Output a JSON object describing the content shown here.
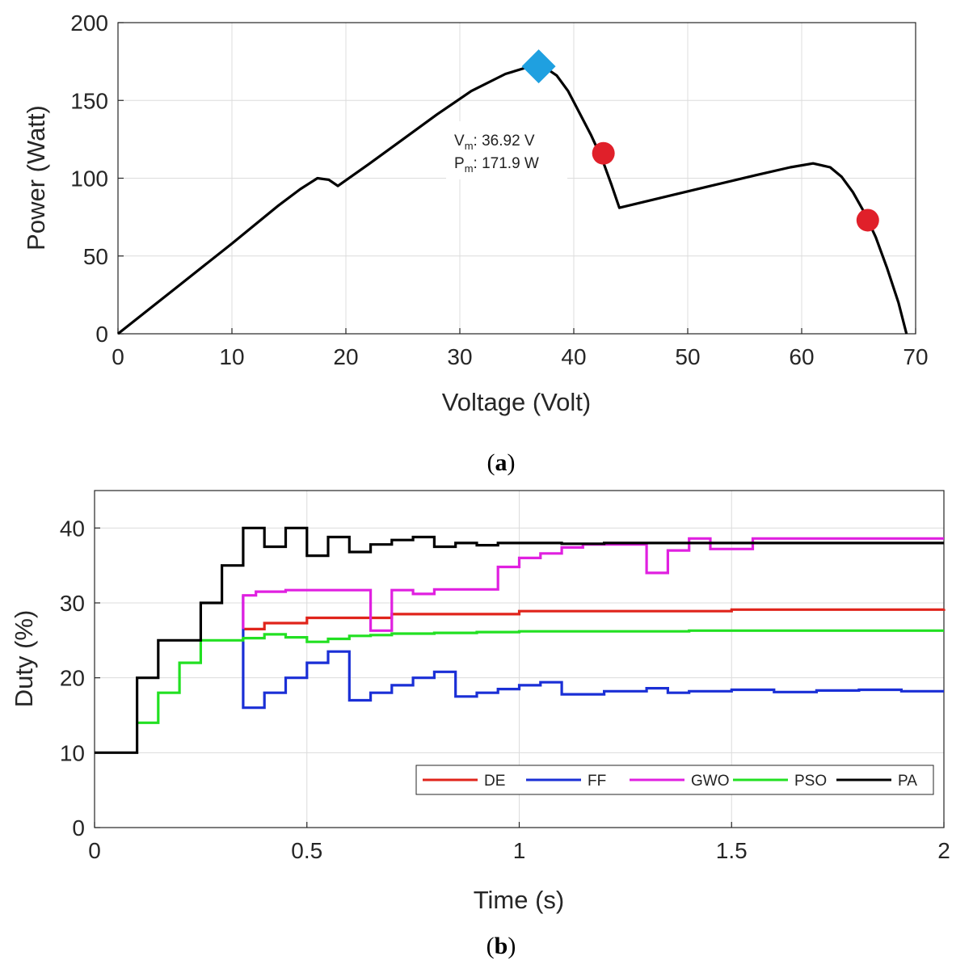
{
  "chart_data": [
    {
      "type": "line",
      "panel_label": "a",
      "xlabel": "Voltage (Volt)",
      "ylabel": "Power (Watt)",
      "xlim": [
        0,
        70
      ],
      "ylim": [
        0,
        200
      ],
      "xticks": [
        0,
        10,
        20,
        30,
        40,
        50,
        60,
        70
      ],
      "yticks": [
        0,
        50,
        100,
        150,
        200
      ],
      "grid": true,
      "series": [
        {
          "name": "P-V curve",
          "color": "#000000",
          "x": [
            0,
            5,
            10,
            14,
            16,
            17.5,
            18.5,
            19.3,
            22,
            25,
            28,
            31,
            34,
            36,
            37.5,
            38.5,
            39.5,
            40.5,
            41.5,
            42.5,
            43.3,
            44.0,
            48,
            52,
            56,
            59,
            61,
            62.5,
            63.5,
            64.5,
            65.5,
            66.5,
            67.5,
            68.5,
            69.2
          ],
          "y": [
            0,
            29,
            58,
            82,
            93,
            100,
            99,
            95,
            109,
            125,
            141,
            156,
            167,
            171.5,
            171,
            166,
            156,
            142,
            128,
            112,
            96,
            81,
            88,
            95,
            102,
            107,
            109.5,
            107,
            101,
            91,
            78,
            62,
            42,
            20,
            0
          ]
        }
      ],
      "markers": [
        {
          "kind": "diamond",
          "color": "#1fa0e0",
          "x": 36.92,
          "y": 171.9
        },
        {
          "kind": "circle",
          "color": "#e0202a",
          "x": 42.6,
          "y": 116
        },
        {
          "kind": "circle",
          "color": "#e0202a",
          "x": 65.8,
          "y": 73
        }
      ],
      "annotation": {
        "x": 37.5,
        "y": 111,
        "line1_main": "V",
        "line1_sub": "m",
        "line1_rest": ": 36.92 V",
        "line2_main": "P",
        "line2_sub": "m",
        "line2_rest": ": 171.9 W"
      }
    },
    {
      "type": "line",
      "panel_label": "b",
      "xlabel": "Time (s)",
      "ylabel": "Duty (%)",
      "xlim": [
        0,
        2
      ],
      "ylim": [
        0,
        45
      ],
      "xticks": [
        0,
        0.5,
        1,
        1.5,
        2
      ],
      "yticks": [
        0,
        10,
        20,
        30,
        40
      ],
      "grid": true,
      "legend_position": "bottom-right",
      "series": [
        {
          "name": "DE",
          "color": "#e0241b",
          "x": [
            0.35,
            0.4,
            0.5,
            0.7,
            1.0,
            1.5,
            2.0
          ],
          "y": [
            26.5,
            27.3,
            28.0,
            28.5,
            28.9,
            29.1,
            29.2
          ]
        },
        {
          "name": "FF",
          "color": "#1a2fd6",
          "x": [
            0.35,
            0.35,
            0.4,
            0.45,
            0.5,
            0.55,
            0.6,
            0.65,
            0.7,
            0.75,
            0.8,
            0.85,
            0.9,
            0.95,
            1.0,
            1.05,
            1.1,
            1.2,
            1.3,
            1.35,
            1.4,
            1.5,
            1.6,
            1.7,
            1.8,
            1.9,
            2.0
          ],
          "y": [
            31.0,
            16.0,
            18.0,
            20.0,
            22.0,
            23.5,
            17.0,
            18.0,
            19.0,
            20.0,
            20.8,
            17.5,
            18.0,
            18.5,
            19.0,
            19.4,
            17.8,
            18.2,
            18.6,
            18.0,
            18.2,
            18.4,
            18.1,
            18.3,
            18.4,
            18.2,
            18.2
          ]
        },
        {
          "name": "GWO",
          "color": "#e020e0",
          "x": [
            0.35,
            0.35,
            0.38,
            0.45,
            0.65,
            0.7,
            0.75,
            0.8,
            0.95,
            1.0,
            1.05,
            1.1,
            1.15,
            1.2,
            1.3,
            1.35,
            1.4,
            1.45,
            1.55,
            1.6
          ],
          "y": [
            26.5,
            31.0,
            31.5,
            31.7,
            26.3,
            31.7,
            31.2,
            31.8,
            34.8,
            36.0,
            36.6,
            37.4,
            37.8,
            37.8,
            34.0,
            37.0,
            38.6,
            37.2,
            38.6,
            38.6
          ]
        },
        {
          "name": "PSO",
          "color": "#22e022",
          "x": [
            0.1,
            0.15,
            0.2,
            0.25,
            0.3,
            0.35,
            0.4,
            0.45,
            0.5,
            0.55,
            0.6,
            0.65,
            0.7,
            0.8,
            0.9,
            1.0,
            1.2,
            1.4,
            1.6,
            1.8,
            2.0
          ],
          "y": [
            14.0,
            18.0,
            22.0,
            25.0,
            25.0,
            25.3,
            25.8,
            25.4,
            24.8,
            25.2,
            25.6,
            25.7,
            25.9,
            26.0,
            26.1,
            26.2,
            26.2,
            26.3,
            26.3,
            26.3,
            26.3
          ]
        },
        {
          "name": "PA",
          "color": "#000000",
          "x": [
            0.0,
            0.1,
            0.15,
            0.2,
            0.25,
            0.3,
            0.35,
            0.4,
            0.45,
            0.5,
            0.55,
            0.6,
            0.65,
            0.7,
            0.75,
            0.8,
            0.85,
            0.9,
            0.95,
            1.0,
            1.1,
            1.2,
            1.4,
            2.0
          ],
          "y": [
            10.0,
            20.0,
            25.0,
            25.0,
            30.0,
            35.0,
            40.0,
            37.5,
            40.0,
            36.3,
            38.8,
            36.8,
            37.8,
            38.4,
            38.8,
            37.5,
            38.0,
            37.7,
            38.0,
            38.0,
            37.9,
            38.0,
            38.0,
            38.0
          ]
        }
      ]
    }
  ]
}
